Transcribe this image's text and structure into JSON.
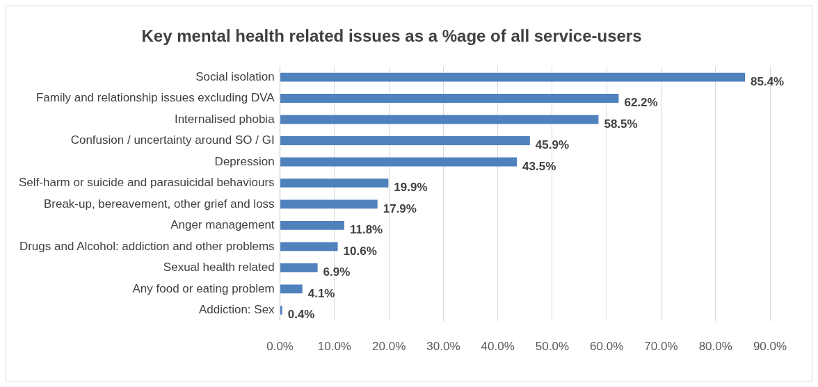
{
  "chart_data": {
    "type": "bar",
    "orientation": "horizontal",
    "title": "Key mental health related issues as a %age of all service-users",
    "categories": [
      "Social isolation",
      "Family and relationship issues excluding DVA",
      "Internalised phobia",
      "Confusion / uncertainty around SO / GI",
      "Depression",
      "Self-harm or suicide and parasuicidal behaviours",
      "Break-up, bereavement, other grief and loss",
      "Anger management",
      "Drugs and Alcohol: addiction and other problems",
      "Sexual health related",
      "Any food or eating problem",
      "Addiction: Sex"
    ],
    "values": [
      85.4,
      62.2,
      58.5,
      45.9,
      43.5,
      19.9,
      17.9,
      11.8,
      10.6,
      6.9,
      4.1,
      0.4
    ],
    "value_labels": [
      "85.4%",
      "62.2%",
      "58.5%",
      "45.9%",
      "43.5%",
      "19.9%",
      "17.9%",
      "11.8%",
      "10.6%",
      "6.9%",
      "4.1%",
      "0.4%"
    ],
    "color": "#4f81bd",
    "xlim": [
      0,
      90
    ],
    "xticks": [
      {
        "value": 0,
        "label": "0.0%"
      },
      {
        "value": 10,
        "label": "10.0%"
      },
      {
        "value": 20,
        "label": "20.0%"
      },
      {
        "value": 30,
        "label": "30.0%"
      },
      {
        "value": 40,
        "label": "40.0%"
      },
      {
        "value": 50,
        "label": "50.0%"
      },
      {
        "value": 60,
        "label": "60.0%"
      },
      {
        "value": 70,
        "label": "70.0%"
      },
      {
        "value": 80,
        "label": "80.0%"
      },
      {
        "value": 90,
        "label": "90.0%"
      }
    ],
    "grid": "x",
    "legend": false
  }
}
